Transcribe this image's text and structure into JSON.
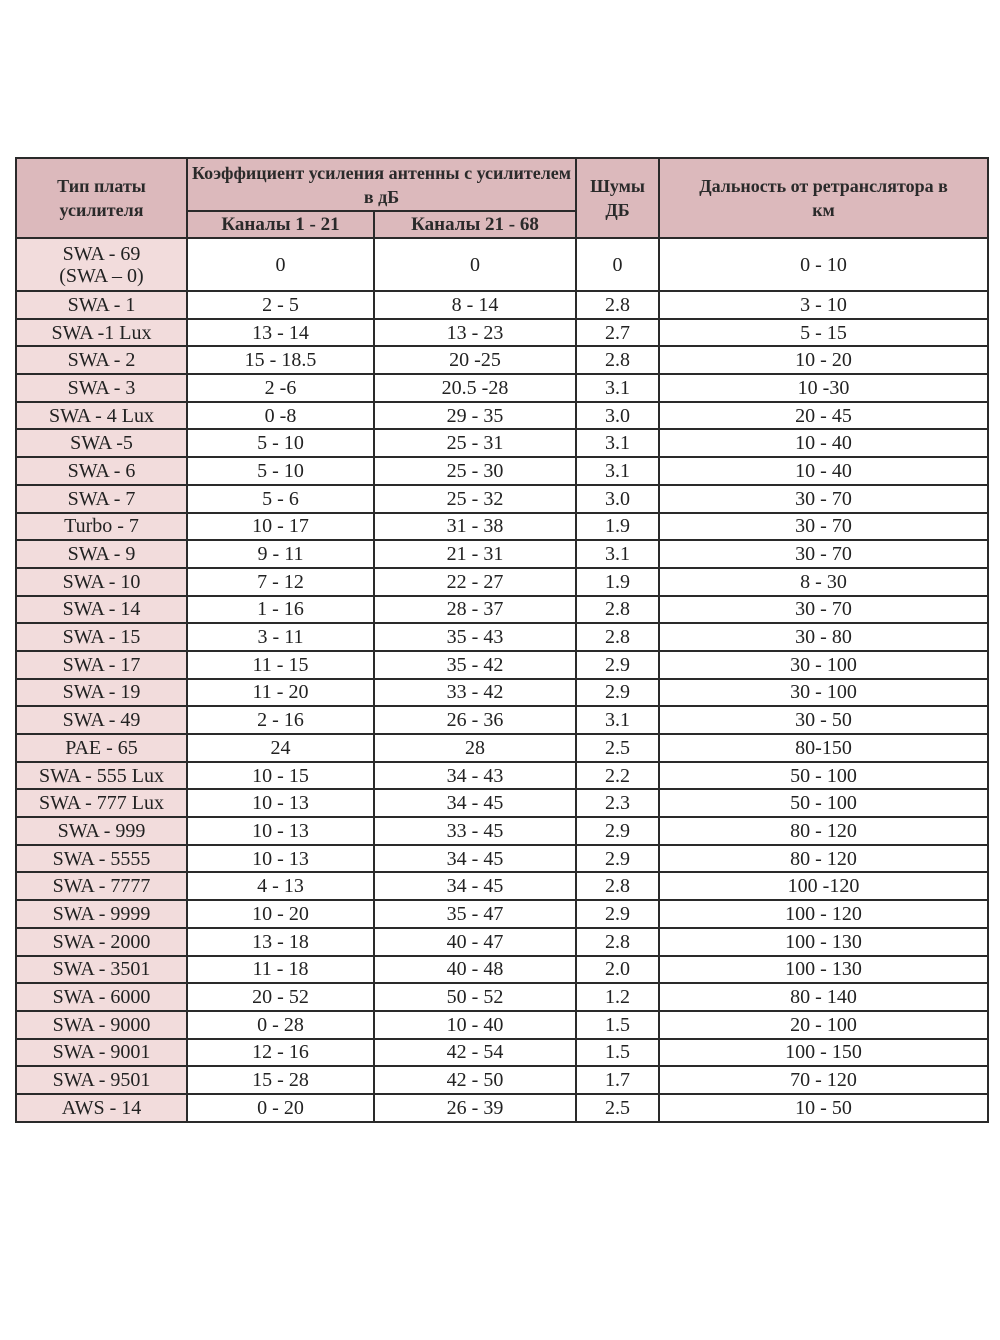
{
  "header": {
    "type": "Тип платы усилителя",
    "gain": "Коэффициент усиления антенны с усилителем в дБ",
    "ch1": "Каналы 1 - 21",
    "ch2": "Каналы 21 - 68",
    "noise": "Шумы ДБ",
    "range": "Дальность от ретранслятора в км"
  },
  "colors": {
    "header_bg": "#dcb9bc",
    "first_col_bg": "#f2dcdc",
    "border": "#2a2a2a"
  },
  "rows": [
    [
      "SWA - 69\n(SWA – 0)",
      "0",
      "0",
      "0",
      "0 - 10"
    ],
    [
      "SWA - 1",
      "2 - 5",
      "8 - 14",
      "2.8",
      "3 - 10"
    ],
    [
      "SWA -1 Lux",
      "13 - 14",
      "13 - 23",
      "2.7",
      "5 - 15"
    ],
    [
      "SWA - 2",
      "15 - 18.5",
      "20 -25",
      "2.8",
      "10 - 20"
    ],
    [
      "SWA - 3",
      "2 -6",
      "20.5 -28",
      "3.1",
      "10 -30"
    ],
    [
      "SWA - 4 Lux",
      "0 -8",
      "29 - 35",
      "3.0",
      "20 - 45"
    ],
    [
      "SWA -5",
      "5 - 10",
      "25 - 31",
      "3.1",
      "10 - 40"
    ],
    [
      "SWA - 6",
      "5 - 10",
      "25 - 30",
      "3.1",
      "10 - 40"
    ],
    [
      "SWA - 7",
      "5 - 6",
      "25 - 32",
      "3.0",
      "30 - 70"
    ],
    [
      "Turbo - 7",
      "10 - 17",
      "31 - 38",
      "1.9",
      "30 - 70"
    ],
    [
      "SWA - 9",
      "9 - 11",
      "21 - 31",
      "3.1",
      "30 - 70"
    ],
    [
      "SWA - 10",
      "7 - 12",
      "22 - 27",
      "1.9",
      "8 - 30"
    ],
    [
      "SWA - 14",
      "1 - 16",
      "28 - 37",
      "2.8",
      "30 - 70"
    ],
    [
      "SWA - 15",
      "3 - 11",
      "35 - 43",
      "2.8",
      "30 - 80"
    ],
    [
      "SWA - 17",
      "11 - 15",
      "35 - 42",
      "2.9",
      "30 - 100"
    ],
    [
      "SWA - 19",
      "11 - 20",
      "33 - 42",
      "2.9",
      "30 - 100"
    ],
    [
      "SWA - 49",
      "2 - 16",
      "26 - 36",
      "3.1",
      "30 - 50"
    ],
    [
      "PAE - 65",
      "24",
      "28",
      "2.5",
      "80-150"
    ],
    [
      "SWA - 555 Lux",
      "10 - 15",
      "34 - 43",
      "2.2",
      "50 - 100"
    ],
    [
      "SWA - 777 Lux",
      "10 - 13",
      "34 - 45",
      "2.3",
      "50 - 100"
    ],
    [
      "SWA - 999",
      "10 - 13",
      "33 - 45",
      "2.9",
      "80 - 120"
    ],
    [
      "SWA - 5555",
      "10 - 13",
      "34 - 45",
      "2.9",
      "80 - 120"
    ],
    [
      "SWA - 7777",
      "4 - 13",
      "34 - 45",
      "2.8",
      "100 -120"
    ],
    [
      "SWA - 9999",
      "10 - 20",
      "35 - 47",
      "2.9",
      "100 - 120"
    ],
    [
      "SWA - 2000",
      "13 - 18",
      "40 - 47",
      "2.8",
      "100 - 130"
    ],
    [
      "SWA - 3501",
      "11 - 18",
      "40 - 48",
      "2.0",
      "100 - 130"
    ],
    [
      "SWA - 6000",
      "20 - 52",
      "50 - 52",
      "1.2",
      "80 - 140"
    ],
    [
      "SWA - 9000",
      "0 - 28",
      "10 - 40",
      "1.5",
      "20 - 100"
    ],
    [
      "SWA - 9001",
      "12 - 16",
      "42 - 54",
      "1.5",
      "100 - 150"
    ],
    [
      "SWA - 9501",
      "15 - 28",
      "42 - 50",
      "1.7",
      "70 - 120"
    ],
    [
      "AWS - 14",
      "0 - 20",
      "26 - 39",
      "2.5",
      "10 - 50"
    ]
  ]
}
